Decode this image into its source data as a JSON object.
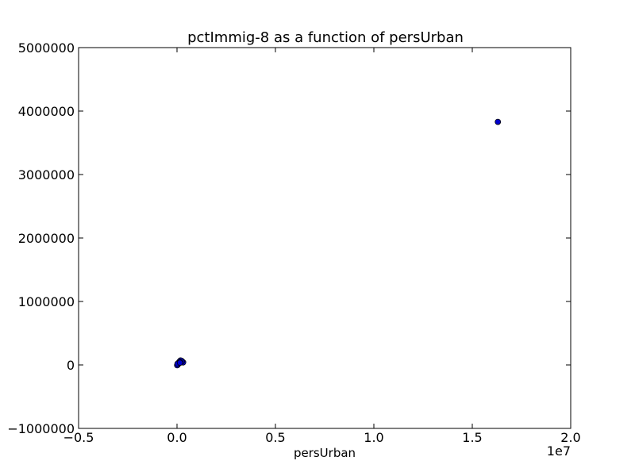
{
  "chart_data": {
    "type": "scatter",
    "title": "pctImmig-8 as a function of persUrban",
    "xlabel": "persUrban",
    "ylabel": "",
    "x_offset_label": "1e7",
    "xlim": [
      -5000000,
      20000000
    ],
    "ylim": [
      -1000000,
      5000000
    ],
    "x_ticks": [
      -5000000,
      0,
      5000000,
      10000000,
      15000000,
      20000000
    ],
    "x_tick_labels": [
      "−0.5",
      "0.0",
      "0.5",
      "1.0",
      "1.5",
      "2.0"
    ],
    "y_ticks": [
      -1000000,
      0,
      1000000,
      2000000,
      3000000,
      4000000,
      5000000
    ],
    "y_tick_labels": [
      "−1000000",
      "0",
      "1000000",
      "2000000",
      "3000000",
      "4000000",
      "5000000"
    ],
    "grid": false,
    "marker_color": "#0000cc",
    "points": [
      {
        "x": 16300000,
        "y": 3830000
      },
      {
        "x": 310000,
        "y": 40000
      },
      {
        "x": 250000,
        "y": 60000
      },
      {
        "x": 180000,
        "y": 70000
      },
      {
        "x": 120000,
        "y": 50000
      },
      {
        "x": 90000,
        "y": 30000
      },
      {
        "x": 60000,
        "y": 15000
      },
      {
        "x": 40000,
        "y": 5000
      },
      {
        "x": 20000,
        "y": 0
      },
      {
        "x": 10000,
        "y": -5000
      },
      {
        "x": 30000,
        "y": 20000
      },
      {
        "x": 150000,
        "y": 35000
      }
    ]
  }
}
